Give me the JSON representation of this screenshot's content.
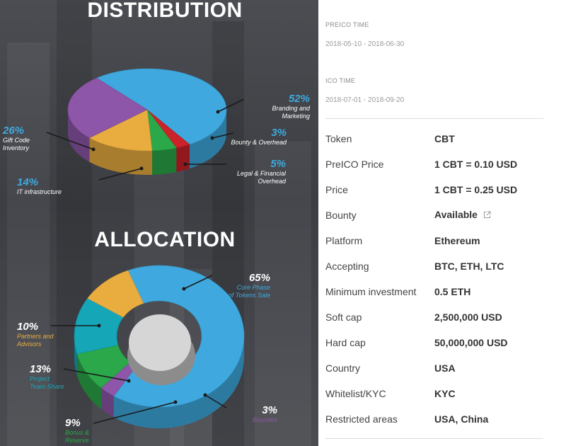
{
  "distribution": {
    "title": "DISTRIBUTION",
    "chart_data": {
      "type": "pie",
      "categories": [
        "Branding and Marketing",
        "Bounty & Overhead",
        "Legal & Financial Overhead",
        "IT infrastructure",
        "Gift Code Inventory"
      ],
      "values": [
        52,
        3,
        5,
        14,
        26
      ],
      "colors": [
        "#3fa9df",
        "#cc2229",
        "#2ba84a",
        "#e9ad3f",
        "#8e56a8"
      ],
      "labels": [
        {
          "pct": "52%",
          "line1": "Branding and",
          "line2": "Marketing"
        },
        {
          "pct": "3%",
          "line1": "Bounty & Overhead",
          "line2": ""
        },
        {
          "pct": "5%",
          "line1": "Legal & Financial",
          "line2": "Overhead"
        },
        {
          "pct": "14%",
          "line1": "IT infrastructure",
          "line2": ""
        },
        {
          "pct": "26%",
          "line1": "Gift Code",
          "line2": "Inventory"
        }
      ]
    }
  },
  "allocation": {
    "title": "ALLOCATION",
    "chart_data": {
      "type": "pie",
      "categories": [
        "Core Phase of Tokens Sale",
        "Bounties",
        "Bonus & Reserve",
        "Project Team Share",
        "Partners and Advisors"
      ],
      "values": [
        65,
        3,
        9,
        13,
        10
      ],
      "colors": [
        "#3fa9df",
        "#8e56a8",
        "#2ba84a",
        "#15a6b8",
        "#e9ad3f"
      ],
      "labels": [
        {
          "pct": "65%",
          "line1": "Core Phase",
          "line2": "of Tokens Sale"
        },
        {
          "pct": "3%",
          "line1": "Bounties",
          "line2": ""
        },
        {
          "pct": "9%",
          "line1": "Bonus &",
          "line2": "Reserve"
        },
        {
          "pct": "13%",
          "line1": "Project",
          "line2": "Team Share"
        },
        {
          "pct": "10%",
          "line1": "Partners and",
          "line2": "Advisors"
        }
      ]
    }
  },
  "times": {
    "preico_label": "PREICO TIME",
    "preico_value": "2018-05-10 - 2018-06-30",
    "ico_label": "ICO TIME",
    "ico_value": "2018-07-01 - 2018-09-20"
  },
  "details": {
    "rows": [
      {
        "label": "Token",
        "value": "CBT"
      },
      {
        "label": "PreICO Price",
        "value": "1 CBT = 0.10 USD"
      },
      {
        "label": "Price",
        "value": "1 CBT = 0.25 USD"
      },
      {
        "label": "Bounty",
        "value": "Available"
      },
      {
        "label": "Platform",
        "value": "Ethereum"
      },
      {
        "label": "Accepting",
        "value": "BTC, ETH, LTC"
      },
      {
        "label": "Minimum investment",
        "value": "0.5 ETH"
      },
      {
        "label": "Soft cap",
        "value": "2,500,000 USD"
      },
      {
        "label": "Hard cap",
        "value": "50,000,000 USD"
      },
      {
        "label": "Country",
        "value": "USA"
      },
      {
        "label": "Whitelist/KYC",
        "value": "KYC"
      },
      {
        "label": "Restricted areas",
        "value": "USA, China"
      }
    ],
    "bounty_icon": "external-link-icon"
  }
}
